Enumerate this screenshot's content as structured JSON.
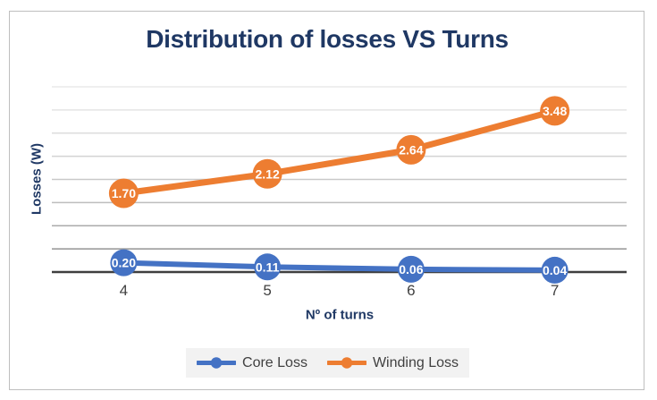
{
  "chart_data": {
    "type": "line",
    "title": "Distribution of losses VS Turns",
    "xlabel": "Nº of turns",
    "ylabel": "Losses (W)",
    "categories": [
      "4",
      "5",
      "6",
      "7"
    ],
    "series": [
      {
        "name": "Core Loss",
        "color": "#4472C4",
        "values": [
          0.2,
          0.11,
          0.06,
          0.04
        ],
        "labels": [
          "0.20",
          "0.11",
          "0.06",
          "0.04"
        ],
        "line_width": 6,
        "marker_radius": 15
      },
      {
        "name": "Winding Loss",
        "color": "#ED7D31",
        "values": [
          1.7,
          2.12,
          2.64,
          3.48
        ],
        "labels": [
          "1.70",
          "2.12",
          "2.64",
          "3.48"
        ],
        "line_width": 7,
        "marker_radius": 16.5
      }
    ],
    "ylim": [
      0,
      4
    ],
    "gridline_step": 0.5,
    "grid": true,
    "y_tick_labels_shown": false,
    "legend_position": "bottom",
    "data_label_position": "inside-marker",
    "data_label_color": "#FFFFFF",
    "title_color": "#1F3864",
    "axis_title_color": "#1F3864",
    "tick_label_color": "#404040",
    "axis_line_color": "#3F3F3F",
    "legend_text_color": "#404040",
    "legend_background": "#F2F2F2",
    "frame_border_color": "#BFBFBF"
  }
}
